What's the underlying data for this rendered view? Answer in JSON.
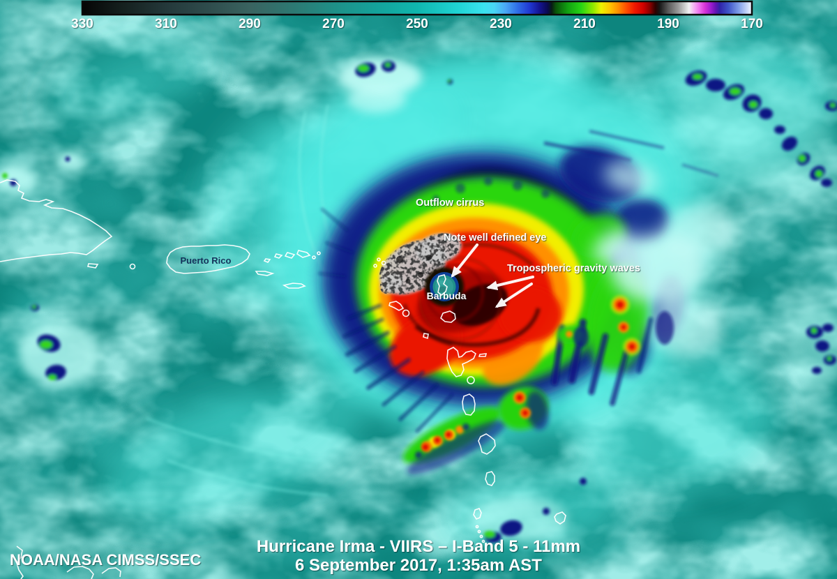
{
  "colorbar": {
    "ticks": [
      "330",
      "310",
      "290",
      "270",
      "250",
      "230",
      "210",
      "190",
      "170"
    ],
    "stops": [
      {
        "o": 0.0,
        "c": "#050505"
      },
      {
        "o": 0.06,
        "c": "#15201e"
      },
      {
        "o": 0.125,
        "c": "#24383a"
      },
      {
        "o": 0.19,
        "c": "#2f4d4d"
      },
      {
        "o": 0.25,
        "c": "#3a6360"
      },
      {
        "o": 0.32,
        "c": "#2c7b74"
      },
      {
        "o": 0.375,
        "c": "#1f8f87"
      },
      {
        "o": 0.44,
        "c": "#14a39b"
      },
      {
        "o": 0.5,
        "c": "#10b6ae"
      },
      {
        "o": 0.56,
        "c": "#1fd3d3"
      },
      {
        "o": 0.6,
        "c": "#3ae2ef"
      },
      {
        "o": 0.615,
        "c": "#49d6f5"
      },
      {
        "o": 0.632,
        "c": "#4aa8f5"
      },
      {
        "o": 0.65,
        "c": "#2f6ee8"
      },
      {
        "o": 0.668,
        "c": "#2038d2"
      },
      {
        "o": 0.683,
        "c": "#141491"
      },
      {
        "o": 0.695,
        "c": "#0a0a50"
      },
      {
        "o": 0.701,
        "c": "#081c14"
      },
      {
        "o": 0.707,
        "c": "#0a520a"
      },
      {
        "o": 0.725,
        "c": "#12a012"
      },
      {
        "o": 0.745,
        "c": "#27d414"
      },
      {
        "o": 0.762,
        "c": "#8ae800"
      },
      {
        "o": 0.775,
        "c": "#eef200"
      },
      {
        "o": 0.788,
        "c": "#ffc400"
      },
      {
        "o": 0.8,
        "c": "#ff9000"
      },
      {
        "o": 0.812,
        "c": "#ff5000"
      },
      {
        "o": 0.825,
        "c": "#f01800"
      },
      {
        "o": 0.838,
        "c": "#d00000"
      },
      {
        "o": 0.848,
        "c": "#860000"
      },
      {
        "o": 0.856,
        "c": "#2e0000"
      },
      {
        "o": 0.862,
        "c": "#161616"
      },
      {
        "o": 0.875,
        "c": "#5a5a5a"
      },
      {
        "o": 0.89,
        "c": "#9a9a9a"
      },
      {
        "o": 0.9,
        "c": "#cfcfcf"
      },
      {
        "o": 0.906,
        "c": "#f2f2f2"
      },
      {
        "o": 0.913,
        "c": "#f4b4f4"
      },
      {
        "o": 0.922,
        "c": "#ee6cee"
      },
      {
        "o": 0.93,
        "c": "#d633d6"
      },
      {
        "o": 0.938,
        "c": "#a21ed2"
      },
      {
        "o": 0.946,
        "c": "#6414b4"
      },
      {
        "o": 0.952,
        "c": "#3023a8"
      },
      {
        "o": 0.965,
        "c": "#3f55c8"
      },
      {
        "o": 0.98,
        "c": "#7e9ce8"
      },
      {
        "o": 0.992,
        "c": "#c3d2f8"
      },
      {
        "o": 1.0,
        "c": "#f4f8ff"
      }
    ]
  },
  "annotations": {
    "outflow_cirrus": "Outflow cirrus",
    "well_defined_eye": "Note well defined eye",
    "gravity_waves": "Tropospheric gravity waves"
  },
  "geo_labels": {
    "puerto_rico": "Puerto Rico",
    "barbuda": "Barbuda"
  },
  "footer": {
    "credit": "NOAA/NASA CIMSS/SSEC",
    "title_line1": "Hurricane Irma - VIIRS – I-Band 5 - 11mm",
    "title_line2": "6 September 2017, 1:35am AST"
  },
  "colors": {
    "ocean_teal": "#0d857e",
    "cloud_cyan": "#52ebe2",
    "cold_navy": "#0a1283",
    "cold_green": "#2bd60f",
    "cold_yellow": "#f2ee00",
    "cold_orange": "#ff9000",
    "cold_red": "#ea1200",
    "overshoot_gray": "#c6c6c6",
    "eye_teal": "#2f9e97",
    "coastline_white": "#ffffff",
    "label_navy": "#14325a"
  }
}
